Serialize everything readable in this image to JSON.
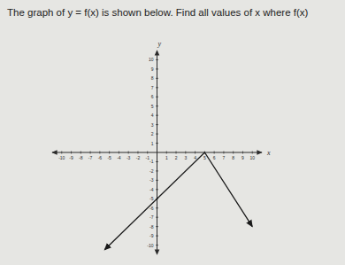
{
  "chart_data": {
    "type": "line",
    "title": "The graph of y = f(x) is shown below. Find all values of x where f(x)",
    "x_label": "x",
    "y_label": "y",
    "x": [
      -5.5,
      5,
      10
    ],
    "values": [
      -10.5,
      0,
      -8
    ],
    "color": "#1a1a1a",
    "xlim": [
      -11,
      11
    ],
    "ylim": [
      -11,
      11
    ],
    "xticks": [
      -10,
      -9,
      -8,
      -7,
      -6,
      -5,
      -4,
      -3,
      -2,
      -1,
      1,
      2,
      3,
      4,
      5,
      6,
      7,
      8,
      9,
      10
    ],
    "yticks": [
      -10,
      -9,
      -8,
      -7,
      -6,
      -5,
      -4,
      -3,
      -2,
      -1,
      1,
      2,
      3,
      4,
      5,
      6,
      7,
      8,
      9,
      10
    ],
    "grid": false
  }
}
